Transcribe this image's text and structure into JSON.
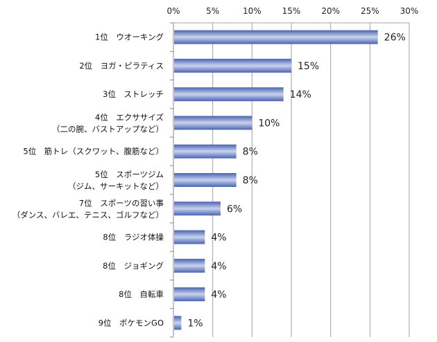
{
  "chart_data": {
    "type": "bar",
    "orientation": "horizontal",
    "categories": [
      [
        "1位　ウオーキング"
      ],
      [
        "2位　ヨガ・ピラティス"
      ],
      [
        "3位　ストレッチ"
      ],
      [
        "4位　エクササイズ",
        "（二の腕、バストアップなど）"
      ],
      [
        "5位　筋トレ（スクワット、腹筋など）"
      ],
      [
        "5位　スポーツジム",
        "（ジム、サーキットなど）"
      ],
      [
        "7位　スポーツの習い事",
        "（ダンス、バレエ、テニス、ゴルフなど）"
      ],
      [
        "8位　ラジオ体操"
      ],
      [
        "8位　ジョギング"
      ],
      [
        "8位　自転車"
      ],
      [
        "9位　ポケモンGO"
      ]
    ],
    "values": [
      26,
      15,
      14,
      10,
      8,
      8,
      6,
      4,
      4,
      4,
      1
    ],
    "data_labels": [
      "26%",
      "15%",
      "14%",
      "10%",
      "8%",
      "8%",
      "6%",
      "4%",
      "4%",
      "4%",
      "1%"
    ],
    "xlim": [
      0,
      30
    ],
    "xticks": [
      "0%",
      "5%",
      "10%",
      "15%",
      "20%",
      "25%",
      "30%"
    ],
    "axis_position": "top",
    "grid": true,
    "colors": {
      "bar_edge": "#4a63b0",
      "bar_center": "#c9d3ef",
      "grid": "#a0a0a0"
    }
  }
}
